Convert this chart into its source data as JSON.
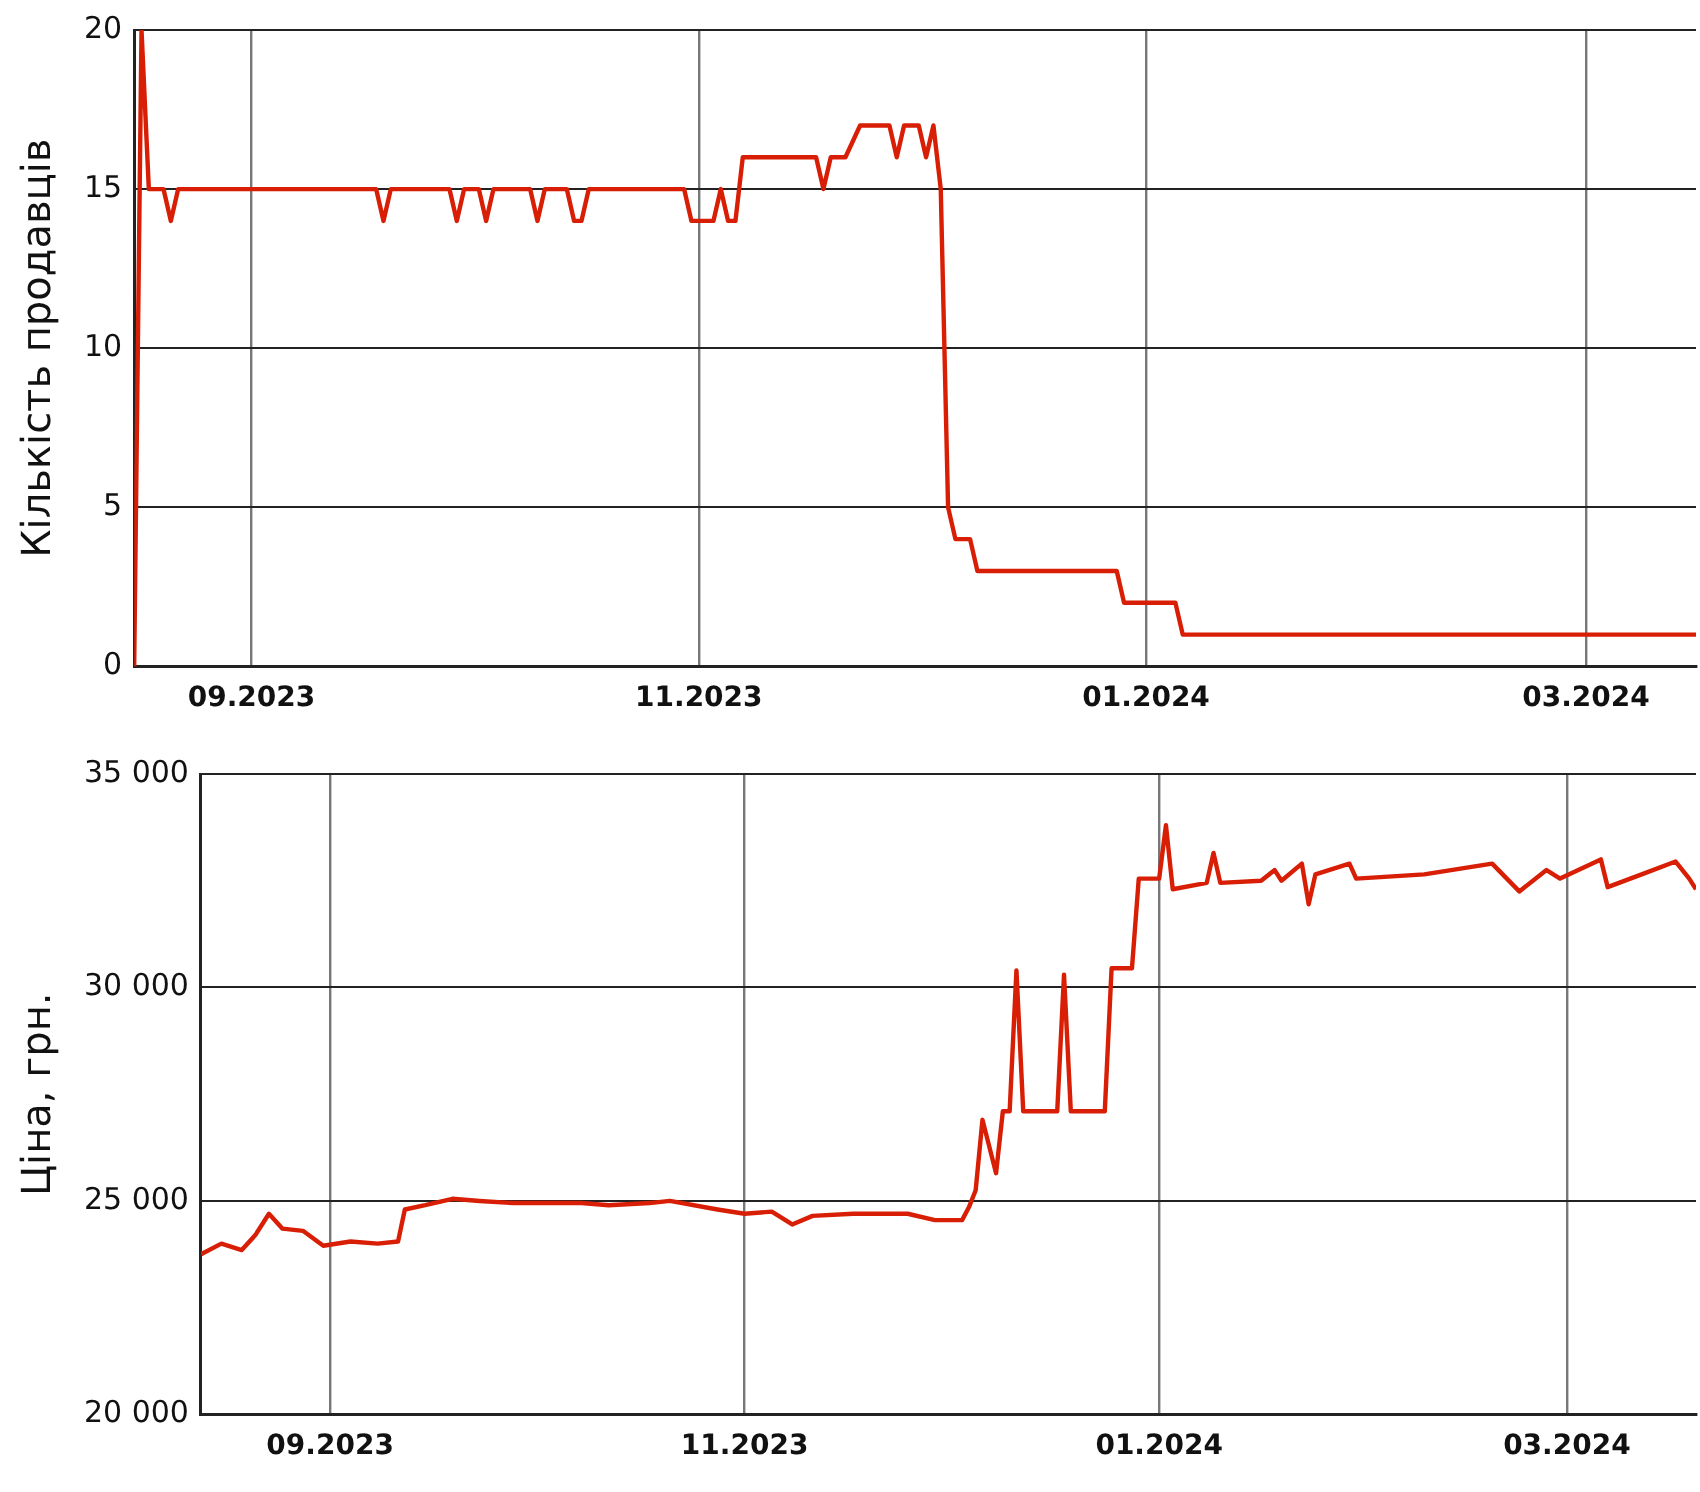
{
  "chart_data": [
    {
      "type": "line",
      "ylabel": "Кількість продавців",
      "color": "#d81e05",
      "marker": "none",
      "line_style": "solid",
      "grid": true,
      "legend": false,
      "x": [
        "2023-08-16",
        "2023-08-17",
        "2023-08-18",
        "2023-08-20",
        "2023-08-21",
        "2023-08-22",
        "2023-09-18",
        "2023-09-19",
        "2023-09-20",
        "2023-09-28",
        "2023-09-29",
        "2023-09-30",
        "2023-10-02",
        "2023-10-03",
        "2023-10-04",
        "2023-10-09",
        "2023-10-10",
        "2023-10-11",
        "2023-10-14",
        "2023-10-15",
        "2023-10-16",
        "2023-10-17",
        "2023-10-30",
        "2023-10-31",
        "2023-11-03",
        "2023-11-04",
        "2023-11-05",
        "2023-11-06",
        "2023-11-07",
        "2023-11-17",
        "2023-11-18",
        "2023-11-19",
        "2023-11-21",
        "2023-11-23",
        "2023-11-27",
        "2023-11-28",
        "2023-11-29",
        "2023-12-01",
        "2023-12-02",
        "2023-12-03",
        "2023-12-04",
        "2023-12-05",
        "2023-12-06",
        "2023-12-08",
        "2023-12-09",
        "2023-12-28",
        "2023-12-29",
        "2024-01-05",
        "2024-01-06",
        "2024-03-16"
      ],
      "values": [
        0,
        20,
        15,
        15,
        14,
        15,
        15,
        14,
        15,
        15,
        14,
        15,
        15,
        14,
        15,
        15,
        14,
        15,
        15,
        14,
        14,
        15,
        15,
        14,
        14,
        15,
        14,
        14,
        16,
        16,
        15,
        16,
        16,
        17,
        17,
        16,
        17,
        17,
        16,
        17,
        15,
        5,
        4,
        4,
        3,
        3,
        2,
        2,
        1,
        1
      ],
      "xlim": [
        "2023-08-16",
        "2024-03-16"
      ],
      "xticks": [
        {
          "value": "2023-09-01",
          "label": "09.2023"
        },
        {
          "value": "2023-11-01",
          "label": "11.2023"
        },
        {
          "value": "2024-01-01",
          "label": "01.2024"
        },
        {
          "value": "2024-03-01",
          "label": "03.2024"
        }
      ],
      "ylim": [
        0,
        20
      ],
      "yticks": [
        0,
        5,
        10,
        15,
        20
      ]
    },
    {
      "type": "line",
      "ylabel": "Ціна, грн.",
      "color": "#d81e05",
      "marker": "none",
      "line_style": "solid",
      "grid": true,
      "legend": false,
      "x": [
        "2023-08-13",
        "2023-08-16",
        "2023-08-19",
        "2023-08-21",
        "2023-08-23",
        "2023-08-25",
        "2023-08-28",
        "2023-08-31",
        "2023-09-04",
        "2023-09-08",
        "2023-09-11",
        "2023-09-12",
        "2023-09-15",
        "2023-09-19",
        "2023-09-23",
        "2023-09-28",
        "2023-10-08",
        "2023-10-12",
        "2023-10-18",
        "2023-10-21",
        "2023-10-28",
        "2023-11-01",
        "2023-11-05",
        "2023-11-08",
        "2023-11-11",
        "2023-11-17",
        "2023-11-25",
        "2023-11-29",
        "2023-12-03",
        "2023-12-04",
        "2023-12-05",
        "2023-12-06",
        "2023-12-08",
        "2023-12-09",
        "2023-12-10",
        "2023-12-11",
        "2023-12-12",
        "2023-12-17",
        "2023-12-18",
        "2023-12-19",
        "2023-12-24",
        "2023-12-25",
        "2023-12-28",
        "2023-12-29",
        "2024-01-01",
        "2024-01-02",
        "2024-01-03",
        "2024-01-08",
        "2024-01-09",
        "2024-01-10",
        "2024-01-16",
        "2024-01-18",
        "2024-01-19",
        "2024-01-22",
        "2024-01-23",
        "2024-01-24",
        "2024-01-29",
        "2024-01-30",
        "2024-02-09",
        "2024-02-19",
        "2024-02-23",
        "2024-02-27",
        "2024-02-29",
        "2024-03-06",
        "2024-03-07",
        "2024-03-12",
        "2024-03-17",
        "2024-03-19",
        "2024-03-20"
      ],
      "values": [
        23750,
        24000,
        23850,
        24200,
        24700,
        24350,
        24300,
        23950,
        24050,
        24000,
        24050,
        24800,
        24900,
        25050,
        25000,
        24950,
        24950,
        24900,
        24950,
        25000,
        24800,
        24700,
        24750,
        24450,
        24650,
        24700,
        24700,
        24550,
        24550,
        24850,
        25250,
        26900,
        25650,
        27100,
        27100,
        30400,
        27100,
        27100,
        30300,
        27100,
        27100,
        30450,
        30450,
        32550,
        32550,
        33800,
        32300,
        32450,
        33150,
        32450,
        32500,
        32750,
        32500,
        32900,
        31950,
        32650,
        32900,
        32550,
        32650,
        32900,
        32250,
        32750,
        32550,
        33000,
        32350,
        32650,
        32950,
        32550,
        32300
      ],
      "xlim": [
        "2023-08-13",
        "2024-03-20"
      ],
      "xticks": [
        {
          "value": "2023-09-01",
          "label": "09.2023"
        },
        {
          "value": "2023-11-01",
          "label": "11.2023"
        },
        {
          "value": "2024-01-01",
          "label": "01.2024"
        },
        {
          "value": "2024-03-01",
          "label": "03.2024"
        }
      ],
      "ylim": [
        20000,
        35000
      ],
      "yticks": [
        {
          "value": 20000,
          "label": "20 000"
        },
        {
          "value": 25000,
          "label": "25 000"
        },
        {
          "value": 30000,
          "label": "30 000"
        },
        {
          "value": 35000,
          "label": "35 000"
        }
      ]
    }
  ]
}
